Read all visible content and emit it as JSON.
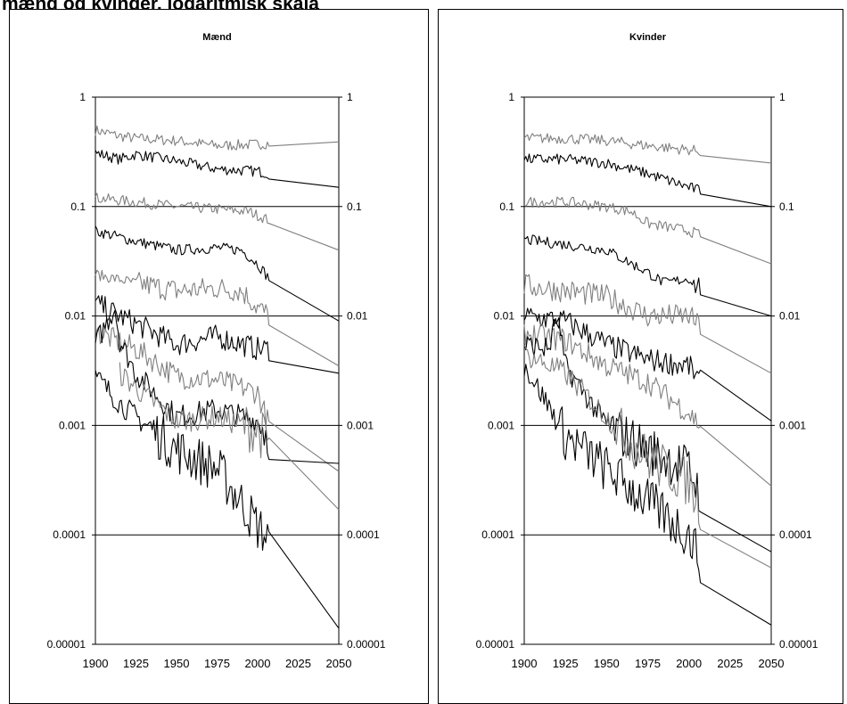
{
  "page": {
    "title": "mænd og kvinder, logaritmisk skala"
  },
  "chart_data": [
    {
      "type": "line",
      "title": "Mænd",
      "x_ticks": [
        1900,
        1925,
        1950,
        1975,
        2000,
        2025,
        2050
      ],
      "y_ticks": [
        "1",
        "0.1",
        "0.01",
        "0.001",
        "0.0001",
        "0.00001"
      ],
      "y_tick_values": [
        1,
        0.1,
        0.01,
        0.001,
        0.0001,
        1e-05
      ],
      "xlim": [
        1900,
        2050
      ],
      "ylim": [
        1e-05,
        1
      ],
      "yscale": "log",
      "grid": "horizontal",
      "series": [
        {
          "color": "#808080",
          "points": [
            [
              1900,
              0.5
            ],
            [
              1915,
              0.44
            ],
            [
              1925,
              0.42
            ],
            [
              1950,
              0.4
            ],
            [
              1975,
              0.36
            ],
            [
              2000,
              0.37
            ],
            [
              2007,
              0.38
            ],
            [
              2050,
              0.39
            ]
          ]
        },
        {
          "color": "#000000",
          "points": [
            [
              1900,
              0.31
            ],
            [
              1915,
              0.27
            ],
            [
              1925,
              0.3
            ],
            [
              1950,
              0.26
            ],
            [
              1975,
              0.22
            ],
            [
              2000,
              0.21
            ],
            [
              2007,
              0.2
            ],
            [
              2050,
              0.15
            ]
          ]
        },
        {
          "color": "#808080",
          "points": [
            [
              1900,
              0.12
            ],
            [
              1925,
              0.11
            ],
            [
              1950,
              0.1
            ],
            [
              1975,
              0.095
            ],
            [
              1995,
              0.09
            ],
            [
              2007,
              0.075
            ],
            [
              2050,
              0.04
            ]
          ]
        },
        {
          "color": "#000000",
          "points": [
            [
              1900,
              0.06
            ],
            [
              1925,
              0.048
            ],
            [
              1950,
              0.04
            ],
            [
              1975,
              0.042
            ],
            [
              1990,
              0.04
            ],
            [
              2000,
              0.03
            ],
            [
              2007,
              0.022
            ],
            [
              2050,
              0.009
            ]
          ]
        },
        {
          "color": "#808080",
          "points": [
            [
              1900,
              0.024
            ],
            [
              1925,
              0.02
            ],
            [
              1950,
              0.017
            ],
            [
              1975,
              0.018
            ],
            [
              1990,
              0.017
            ],
            [
              2000,
              0.012
            ],
            [
              2007,
              0.01
            ],
            [
              2050,
              0.0035
            ]
          ]
        },
        {
          "color": "#000000",
          "points": [
            [
              1900,
              0.013
            ],
            [
              1915,
              0.01
            ],
            [
              1925,
              0.0085
            ],
            [
              1950,
              0.0055
            ],
            [
              1975,
              0.0065
            ],
            [
              2000,
              0.005
            ],
            [
              2007,
              0.005
            ],
            [
              2050,
              0.003
            ]
          ]
        },
        {
          "color": "#808080",
          "points": [
            [
              1900,
              0.0072
            ],
            [
              1912,
              0.006
            ],
            [
              1925,
              0.005
            ],
            [
              1950,
              0.0028
            ],
            [
              1975,
              0.0026
            ],
            [
              2000,
              0.002
            ],
            [
              2007,
              0.001
            ],
            [
              2050,
              0.00038
            ]
          ]
        },
        {
          "color": "#000000",
          "points": [
            [
              1900,
              0.0055
            ],
            [
              1912,
              0.012
            ],
            [
              1915,
              0.006
            ],
            [
              1925,
              0.003
            ],
            [
              1950,
              0.0012
            ],
            [
              1975,
              0.0014
            ],
            [
              2000,
              0.0011
            ],
            [
              2007,
              0.0008
            ],
            [
              2050,
              0.00045
            ]
          ]
        },
        {
          "color": "#000000",
          "points": [
            [
              1900,
              0.0028
            ],
            [
              1915,
              0.0016
            ],
            [
              1925,
              0.0012
            ],
            [
              1950,
              0.0006
            ],
            [
              1975,
              0.0004
            ],
            [
              1990,
              0.0002
            ],
            [
              2000,
              0.00012
            ],
            [
              2007,
              9e-05
            ],
            [
              2050,
              1.4e-05
            ]
          ]
        },
        {
          "color": "#808080",
          "points": [
            [
              1915,
              0.003
            ],
            [
              1925,
              0.0022
            ],
            [
              1950,
              0.0011
            ],
            [
              1975,
              0.0012
            ],
            [
              2000,
              0.0009
            ],
            [
              2007,
              0.0007
            ],
            [
              2050,
              0.00017
            ]
          ]
        }
      ]
    },
    {
      "type": "line",
      "title": "Kvinder",
      "x_ticks": [
        1900,
        1925,
        1950,
        1975,
        2000,
        2025,
        2050
      ],
      "y_ticks": [
        "1",
        "0.1",
        "0.01",
        "0.001",
        "0.0001",
        "0.00001"
      ],
      "y_tick_values": [
        1,
        0.1,
        0.01,
        0.001,
        0.0001,
        1e-05
      ],
      "xlim": [
        1900,
        2050
      ],
      "ylim": [
        1e-05,
        1
      ],
      "yscale": "log",
      "grid": "horizontal",
      "series": [
        {
          "color": "#808080",
          "points": [
            [
              1900,
              0.42
            ],
            [
              1925,
              0.42
            ],
            [
              1950,
              0.4
            ],
            [
              1975,
              0.36
            ],
            [
              2000,
              0.33
            ],
            [
              2007,
              0.32
            ],
            [
              2050,
              0.25
            ]
          ]
        },
        {
          "color": "#000000",
          "points": [
            [
              1900,
              0.27
            ],
            [
              1925,
              0.27
            ],
            [
              1950,
              0.25
            ],
            [
              1975,
              0.2
            ],
            [
              2000,
              0.15
            ],
            [
              2007,
              0.14
            ],
            [
              2050,
              0.1
            ]
          ]
        },
        {
          "color": "#808080",
          "points": [
            [
              1900,
              0.11
            ],
            [
              1925,
              0.11
            ],
            [
              1950,
              0.1
            ],
            [
              1965,
              0.09
            ],
            [
              1975,
              0.07
            ],
            [
              2000,
              0.06
            ],
            [
              2007,
              0.055
            ],
            [
              2050,
              0.03
            ]
          ]
        },
        {
          "color": "#000000",
          "points": [
            [
              1900,
              0.05
            ],
            [
              1925,
              0.045
            ],
            [
              1950,
              0.04
            ],
            [
              1975,
              0.025
            ],
            [
              1985,
              0.02
            ],
            [
              2000,
              0.022
            ],
            [
              2007,
              0.018
            ],
            [
              2050,
              0.01
            ]
          ]
        },
        {
          "color": "#808080",
          "points": [
            [
              1900,
              0.019
            ],
            [
              1925,
              0.017
            ],
            [
              1950,
              0.015
            ],
            [
              1975,
              0.01
            ],
            [
              2000,
              0.01
            ],
            [
              2007,
              0.008
            ],
            [
              2050,
              0.003
            ]
          ]
        },
        {
          "color": "#000000",
          "points": [
            [
              1900,
              0.01
            ],
            [
              1925,
              0.009
            ],
            [
              1950,
              0.0055
            ],
            [
              1975,
              0.004
            ],
            [
              2000,
              0.0035
            ],
            [
              2007,
              0.0025
            ],
            [
              2050,
              0.0011
            ]
          ]
        },
        {
          "color": "#808080",
          "points": [
            [
              1900,
              0.007
            ],
            [
              1925,
              0.006
            ],
            [
              1950,
              0.0035
            ],
            [
              1975,
              0.0025
            ],
            [
              2000,
              0.0013
            ],
            [
              2007,
              0.001
            ],
            [
              2050,
              0.00028
            ]
          ]
        },
        {
          "color": "#000000",
          "points": [
            [
              1900,
              0.0055
            ],
            [
              1915,
              0.005
            ],
            [
              1920,
              0.01
            ],
            [
              1925,
              0.0035
            ],
            [
              1950,
              0.001
            ],
            [
              1975,
              0.0006
            ],
            [
              2000,
              0.0004
            ],
            [
              2007,
              0.00024
            ],
            [
              2050,
              7e-05
            ]
          ]
        },
        {
          "color": "#808080",
          "points": [
            [
              1900,
              0.0045
            ],
            [
              1925,
              0.003
            ],
            [
              1950,
              0.0012
            ],
            [
              1975,
              0.0005
            ],
            [
              2000,
              0.0003
            ],
            [
              2007,
              0.00018
            ],
            [
              2050,
              5e-05
            ]
          ]
        },
        {
          "color": "#000000",
          "points": [
            [
              1900,
              0.0035
            ],
            [
              1915,
              0.0015
            ],
            [
              1925,
              0.0008
            ],
            [
              1950,
              0.0004
            ],
            [
              1975,
              0.0002
            ],
            [
              2000,
              0.0001
            ],
            [
              2007,
              6e-05
            ],
            [
              2050,
              1.5e-05
            ]
          ]
        }
      ]
    }
  ]
}
